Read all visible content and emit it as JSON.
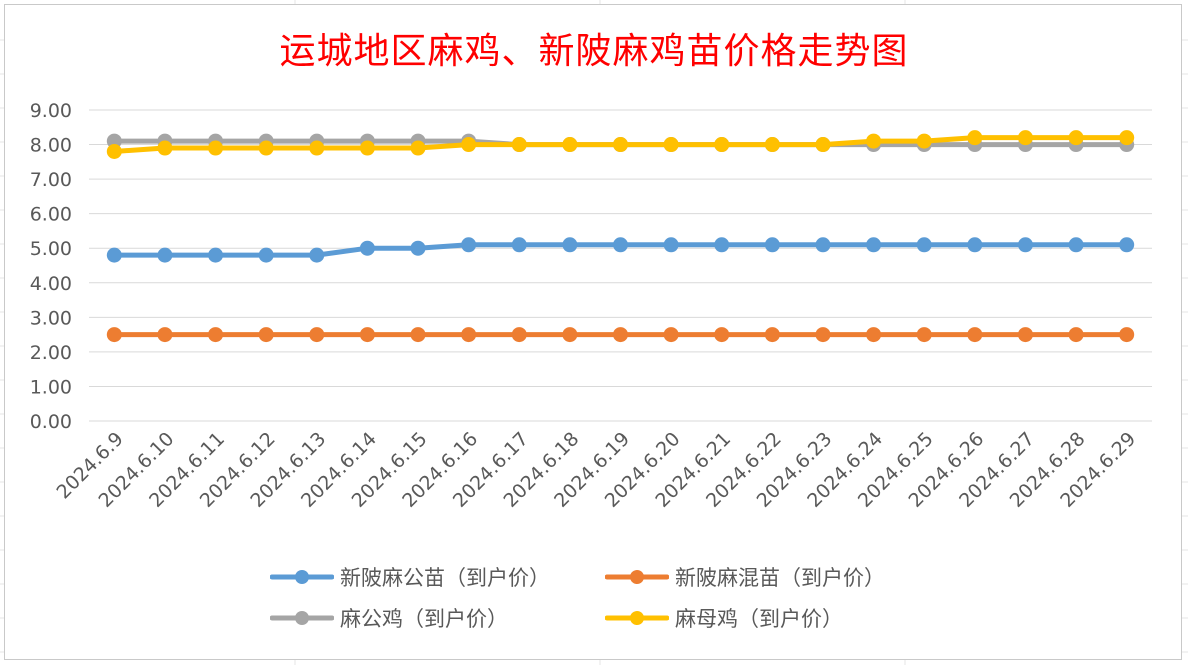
{
  "chart_data": {
    "type": "line",
    "title": "运城地区麻鸡、新陂麻鸡苗价格走势图",
    "xlabel": "",
    "ylabel": "",
    "ylim": [
      0,
      9
    ],
    "y_ticks": [
      "0.00",
      "1.00",
      "2.00",
      "3.00",
      "4.00",
      "5.00",
      "6.00",
      "7.00",
      "8.00",
      "9.00"
    ],
    "grid": true,
    "legend_position": "bottom",
    "categories": [
      "2024.6.9",
      "2024.6.10",
      "2024.6.11",
      "2024.6.12",
      "2024.6.13",
      "2024.6.14",
      "2024.6.15",
      "2024.6.16",
      "2024.6.17",
      "2024.6.18",
      "2024.6.19",
      "2024.6.20",
      "2024.6.21",
      "2024.6.22",
      "2024.6.23",
      "2024.6.24",
      "2024.6.25",
      "2024.6.26",
      "2024.6.27",
      "2024.6.28",
      "2024.6.29"
    ],
    "series": [
      {
        "name": "新陂麻公苗（到户价）",
        "color": "#5b9bd5",
        "values": [
          4.8,
          4.8,
          4.8,
          4.8,
          4.8,
          5.0,
          5.0,
          5.1,
          5.1,
          5.1,
          5.1,
          5.1,
          5.1,
          5.1,
          5.1,
          5.1,
          5.1,
          5.1,
          5.1,
          5.1,
          5.1
        ]
      },
      {
        "name": "新陂麻混苗（到户价）",
        "color": "#ed7d31",
        "values": [
          2.5,
          2.5,
          2.5,
          2.5,
          2.5,
          2.5,
          2.5,
          2.5,
          2.5,
          2.5,
          2.5,
          2.5,
          2.5,
          2.5,
          2.5,
          2.5,
          2.5,
          2.5,
          2.5,
          2.5,
          2.5
        ]
      },
      {
        "name": "麻公鸡（到户价）",
        "color": "#a5a5a5",
        "values": [
          8.1,
          8.1,
          8.1,
          8.1,
          8.1,
          8.1,
          8.1,
          8.1,
          8.0,
          8.0,
          8.0,
          8.0,
          8.0,
          8.0,
          8.0,
          8.0,
          8.0,
          8.0,
          8.0,
          8.0,
          8.0
        ]
      },
      {
        "name": "麻母鸡（到户价）",
        "color": "#ffc000",
        "values": [
          7.8,
          7.9,
          7.9,
          7.9,
          7.9,
          7.9,
          7.9,
          8.0,
          8.0,
          8.0,
          8.0,
          8.0,
          8.0,
          8.0,
          8.0,
          8.1,
          8.1,
          8.2,
          8.2,
          8.2,
          8.2
        ]
      }
    ]
  }
}
